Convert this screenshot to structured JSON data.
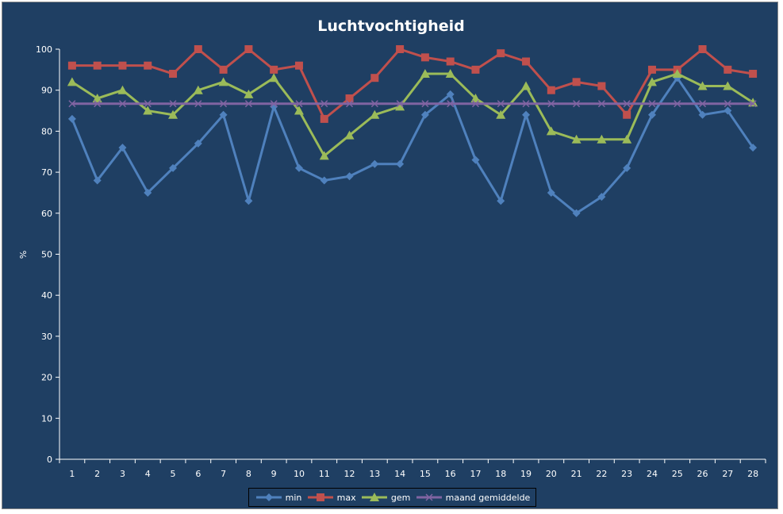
{
  "chart_data": {
    "type": "line",
    "title": "Luchtvochtigheid",
    "xlabel": "",
    "ylabel": "%",
    "ylim": [
      0,
      100
    ],
    "yticks": [
      0,
      10,
      20,
      30,
      40,
      50,
      60,
      70,
      80,
      90,
      100
    ],
    "grid": false,
    "legend_position": "bottom",
    "categories": [
      "1",
      "2",
      "3",
      "4",
      "5",
      "6",
      "7",
      "8",
      "9",
      "10",
      "11",
      "12",
      "13",
      "14",
      "15",
      "16",
      "17",
      "18",
      "19",
      "20",
      "21",
      "22",
      "23",
      "24",
      "25",
      "26",
      "27",
      "28"
    ],
    "series": [
      {
        "name": "min",
        "color": "#4f81bd",
        "marker": "diamond",
        "values": [
          83,
          68,
          76,
          65,
          71,
          77,
          84,
          63,
          86,
          71,
          68,
          69,
          72,
          72,
          84,
          89,
          73,
          63,
          84,
          65,
          60,
          64,
          71,
          84,
          93,
          84,
          85,
          76
        ]
      },
      {
        "name": "max",
        "color": "#c0504d",
        "marker": "square",
        "values": [
          96,
          96,
          96,
          96,
          94,
          100,
          95,
          100,
          95,
          96,
          83,
          88,
          93,
          100,
          98,
          97,
          95,
          99,
          97,
          90,
          92,
          91,
          84,
          95,
          95,
          100,
          95,
          94
        ]
      },
      {
        "name": "gem",
        "color": "#9bbb59",
        "marker": "triangle",
        "values": [
          92,
          88,
          90,
          85,
          84,
          90,
          92,
          89,
          93,
          85,
          74,
          79,
          84,
          86,
          94,
          94,
          88,
          84,
          91,
          80,
          78,
          78,
          78,
          92,
          94,
          91,
          91,
          87
        ]
      },
      {
        "name": "maand gemiddelde",
        "color": "#8064a2",
        "marker": "x",
        "values": [
          86.7,
          86.7,
          86.7,
          86.7,
          86.7,
          86.7,
          86.7,
          86.7,
          86.7,
          86.7,
          86.7,
          86.7,
          86.7,
          86.7,
          86.7,
          86.7,
          86.7,
          86.7,
          86.7,
          86.7,
          86.7,
          86.7,
          86.7,
          86.7,
          86.7,
          86.7,
          86.7,
          86.7
        ]
      }
    ]
  }
}
